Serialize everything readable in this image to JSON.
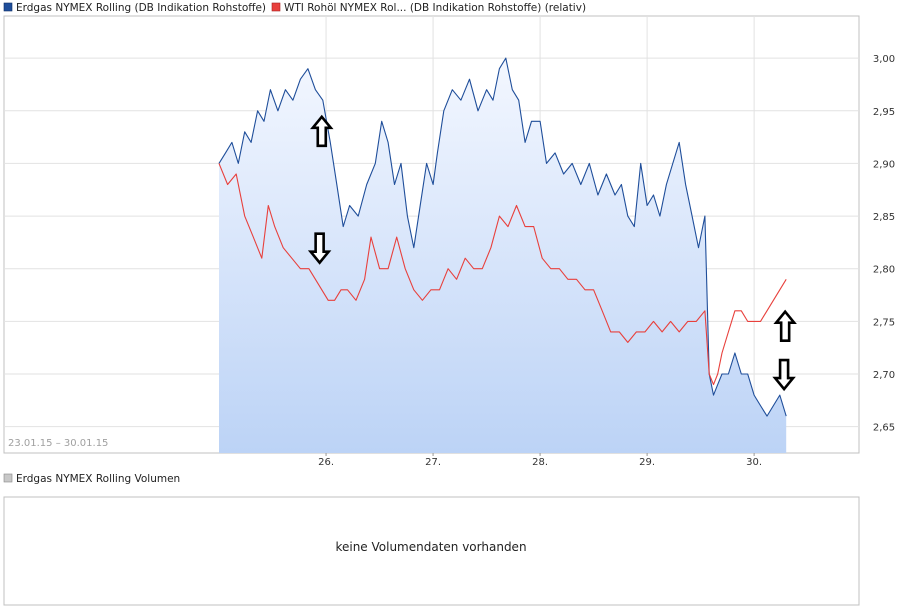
{
  "legend": [
    {
      "label": "Erdgas NYMEX Rolling (DB Indikation Rohstoffe)",
      "color": "#1f4e9a"
    },
    {
      "label": "WTI Rohöl NYMEX Rol... (DB Indikation Rohstoffe) (relativ)",
      "color": "#e8403c"
    }
  ],
  "date_range": "23.01.15 – 30.01.15",
  "volume": {
    "legend_label": "Erdgas NYMEX Rolling Volumen",
    "legend_color": "#c8c8c8",
    "empty_message": "keine Volumendaten vorhanden"
  },
  "chart_data": {
    "type": "line",
    "x_ticks": [
      "26.",
      "27.",
      "28.",
      "29.",
      "30."
    ],
    "y_ticks": [
      "2,65",
      "2,70",
      "2,75",
      "2,80",
      "2,85",
      "2,90",
      "2,95",
      "3,00"
    ],
    "ylim": [
      2.625,
      3.04
    ],
    "xlim": [
      23.0,
      30.98
    ],
    "grid": true,
    "y_axis_position": "right",
    "series": [
      {
        "name": "Erdgas NYMEX Rolling (DB Indikation Rohstoffe)",
        "color": "#1f4e9a",
        "fill": true,
        "x": [
          25.0,
          25.06,
          25.12,
          25.18,
          25.24,
          25.3,
          25.36,
          25.42,
          25.48,
          25.55,
          25.62,
          25.69,
          25.76,
          25.83,
          25.9,
          25.97,
          26.04,
          26.1,
          26.16,
          26.22,
          26.3,
          26.38,
          26.46,
          26.52,
          26.58,
          26.64,
          26.7,
          26.76,
          26.82,
          26.88,
          26.94,
          27.0,
          27.04,
          27.1,
          27.18,
          27.26,
          27.34,
          27.42,
          27.5,
          27.56,
          27.62,
          27.68,
          27.74,
          27.8,
          27.86,
          27.92,
          28.0,
          28.06,
          28.14,
          28.22,
          28.3,
          28.38,
          28.46,
          28.54,
          28.62,
          28.7,
          28.76,
          28.82,
          28.88,
          28.94,
          29.0,
          29.06,
          29.12,
          29.18,
          29.24,
          29.3,
          29.36,
          29.42,
          29.48,
          29.54,
          29.58,
          29.62,
          29.66,
          29.7,
          29.76,
          29.82,
          29.88,
          29.94,
          30.0,
          30.06,
          30.12,
          30.18,
          30.24,
          30.3
        ],
        "y": [
          2.9,
          2.91,
          2.92,
          2.9,
          2.93,
          2.92,
          2.95,
          2.94,
          2.97,
          2.95,
          2.97,
          2.96,
          2.98,
          2.99,
          2.97,
          2.96,
          2.92,
          2.88,
          2.84,
          2.86,
          2.85,
          2.88,
          2.9,
          2.94,
          2.92,
          2.88,
          2.9,
          2.85,
          2.82,
          2.86,
          2.9,
          2.88,
          2.91,
          2.95,
          2.97,
          2.96,
          2.98,
          2.95,
          2.97,
          2.96,
          2.99,
          3.0,
          2.97,
          2.96,
          2.92,
          2.94,
          2.94,
          2.9,
          2.91,
          2.89,
          2.9,
          2.88,
          2.9,
          2.87,
          2.89,
          2.87,
          2.88,
          2.85,
          2.84,
          2.9,
          2.86,
          2.87,
          2.85,
          2.88,
          2.9,
          2.92,
          2.88,
          2.85,
          2.82,
          2.85,
          2.7,
          2.68,
          2.69,
          2.7,
          2.7,
          2.72,
          2.7,
          2.7,
          2.68,
          2.67,
          2.66,
          2.67,
          2.68,
          2.66
        ]
      },
      {
        "name": "WTI Rohöl NYMEX Rol... (DB Indikation Rohstoffe) (relativ)",
        "color": "#e8403c",
        "fill": false,
        "x": [
          25.0,
          25.08,
          25.16,
          25.24,
          25.32,
          25.4,
          25.46,
          25.52,
          25.6,
          25.68,
          25.76,
          25.84,
          25.9,
          25.96,
          26.02,
          26.08,
          26.14,
          26.2,
          26.28,
          26.36,
          26.42,
          26.5,
          26.58,
          26.66,
          26.74,
          26.82,
          26.9,
          26.98,
          27.06,
          27.14,
          27.22,
          27.3,
          27.38,
          27.46,
          27.54,
          27.62,
          27.7,
          27.78,
          27.86,
          27.94,
          28.02,
          28.1,
          28.18,
          28.26,
          28.34,
          28.42,
          28.5,
          28.58,
          28.66,
          28.74,
          28.82,
          28.9,
          28.98,
          29.06,
          29.14,
          29.22,
          29.3,
          29.38,
          29.46,
          29.54,
          29.58,
          29.62,
          29.66,
          29.7,
          29.76,
          29.82,
          29.88,
          29.94,
          30.0,
          30.06,
          30.12,
          30.18,
          30.24,
          30.3
        ],
        "y": [
          2.9,
          2.88,
          2.89,
          2.85,
          2.83,
          2.81,
          2.86,
          2.84,
          2.82,
          2.81,
          2.8,
          2.8,
          2.79,
          2.78,
          2.77,
          2.77,
          2.78,
          2.78,
          2.77,
          2.79,
          2.83,
          2.8,
          2.8,
          2.83,
          2.8,
          2.78,
          2.77,
          2.78,
          2.78,
          2.8,
          2.79,
          2.81,
          2.8,
          2.8,
          2.82,
          2.85,
          2.84,
          2.86,
          2.84,
          2.84,
          2.81,
          2.8,
          2.8,
          2.79,
          2.79,
          2.78,
          2.78,
          2.76,
          2.74,
          2.74,
          2.73,
          2.74,
          2.74,
          2.75,
          2.74,
          2.75,
          2.74,
          2.75,
          2.75,
          2.76,
          2.7,
          2.69,
          2.7,
          2.72,
          2.74,
          2.76,
          2.76,
          2.75,
          2.75,
          2.75,
          2.76,
          2.77,
          2.78,
          2.79
        ]
      }
    ],
    "annotations": [
      {
        "type": "arrow-up",
        "x": 25.96,
        "y": 2.93
      },
      {
        "type": "arrow-down",
        "x": 25.94,
        "y": 2.82
      },
      {
        "type": "arrow-up",
        "x": 30.29,
        "y": 2.745
      },
      {
        "type": "arrow-down",
        "x": 30.28,
        "y": 2.7
      }
    ]
  }
}
